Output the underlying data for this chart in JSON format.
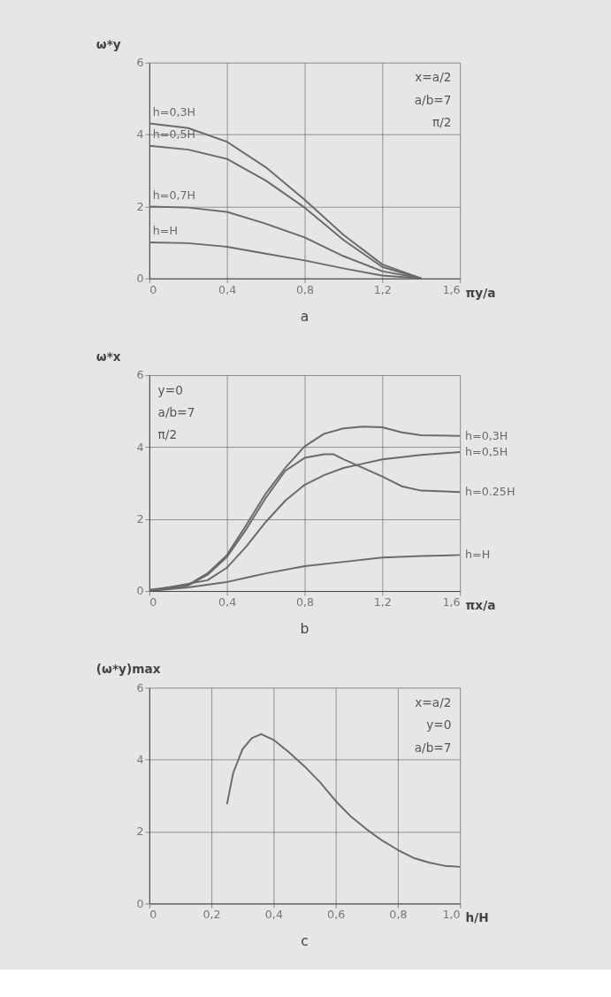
{
  "chart_data": [
    {
      "type": "line",
      "title": "a",
      "xlabel": "πy/a",
      "ylabel": "ω*y",
      "grid": true,
      "legend": false,
      "marker": "none",
      "line_style": "solid",
      "xlim": [
        0,
        1.6
      ],
      "ylim": [
        0,
        6
      ],
      "xticks": [
        0,
        {
          "value": 0.4,
          "label": "0,4"
        },
        {
          "value": 0.8,
          "label": "0,8"
        },
        {
          "value": 1.2,
          "label": "1,2"
        },
        {
          "value": 1.6,
          "label": "1,6"
        }
      ],
      "yticks": [
        0,
        2,
        4,
        6
      ],
      "x": [
        0,
        0.2,
        0.4,
        0.6,
        0.8,
        1.0,
        1.2,
        1.4
      ],
      "series": [
        {
          "name": "h=0,3H",
          "color": "#6a6a6a",
          "values": [
            4.31,
            4.18,
            3.8,
            3.09,
            2.19,
            1.21,
            0.39,
            0
          ]
        },
        {
          "name": "h=0,5H",
          "color": "#6a6a6a",
          "values": [
            3.69,
            3.58,
            3.32,
            2.72,
            1.97,
            1.07,
            0.32,
            0
          ]
        },
        {
          "name": "h=0,7H",
          "color": "#6a6a6a",
          "values": [
            2.0,
            1.97,
            1.85,
            1.52,
            1.14,
            0.62,
            0.2,
            0
          ]
        },
        {
          "name": "h=H",
          "color": "#6a6a6a",
          "values": [
            1.0,
            0.98,
            0.88,
            0.69,
            0.5,
            0.28,
            0.08,
            0
          ]
        }
      ],
      "annotations": [
        "x=a/2",
        "a/b=7",
        "π/2"
      ]
    },
    {
      "type": "line",
      "title": "b",
      "xlabel": "πx/a",
      "ylabel": "ω*x",
      "grid": true,
      "legend": false,
      "marker": "none",
      "line_style": "solid",
      "xlim": [
        0,
        1.6
      ],
      "ylim": [
        0,
        6
      ],
      "xticks": [
        0,
        {
          "value": 0.4,
          "label": "0,4"
        },
        {
          "value": 0.8,
          "label": "0,8"
        },
        {
          "value": 1.2,
          "label": "1,2"
        },
        {
          "value": 1.6,
          "label": "1,6"
        }
      ],
      "yticks": [
        0,
        2,
        4,
        6
      ],
      "series": [
        {
          "name": "h=0,3H",
          "color": "#6a6a6a",
          "x": [
            0,
            0.2,
            0.3,
            0.4,
            0.5,
            0.6,
            0.7,
            0.8,
            0.9,
            1.0,
            1.1,
            1.2,
            1.3,
            1.4,
            1.6
          ],
          "values": [
            0.03,
            0.17,
            0.49,
            1.0,
            1.84,
            2.71,
            3.42,
            4.02,
            4.37,
            4.52,
            4.57,
            4.55,
            4.41,
            4.33,
            4.31
          ]
        },
        {
          "name": "h=0,5H",
          "color": "#6a6a6a",
          "x": [
            0,
            0.3,
            0.4,
            0.5,
            0.6,
            0.7,
            0.8,
            0.9,
            1.0,
            1.1,
            1.2,
            1.4,
            1.6
          ],
          "values": [
            0,
            0.3,
            0.65,
            1.24,
            1.92,
            2.51,
            2.95,
            3.22,
            3.42,
            3.54,
            3.66,
            3.78,
            3.86
          ]
        },
        {
          "name": "h=0.25H",
          "color": "#6a6a6a",
          "x": [
            0,
            0.2,
            0.3,
            0.4,
            0.5,
            0.6,
            0.7,
            0.8,
            0.9,
            0.95,
            1.0,
            1.1,
            1.2,
            1.3,
            1.4,
            1.6
          ],
          "values": [
            0,
            0.15,
            0.45,
            0.95,
            1.72,
            2.59,
            3.34,
            3.7,
            3.8,
            3.8,
            3.66,
            3.42,
            3.18,
            2.91,
            2.79,
            2.75
          ]
        },
        {
          "name": "h=H",
          "color": "#6a6a6a",
          "x": [
            0,
            0.2,
            0.4,
            0.5,
            0.6,
            0.8,
            1.0,
            1.2,
            1.4,
            1.6
          ],
          "values": [
            0,
            0.1,
            0.25,
            0.37,
            0.49,
            0.69,
            0.81,
            0.93,
            0.97,
            1.0
          ]
        }
      ],
      "annotations": [
        "y=0",
        "a/b=7",
        "π/2"
      ]
    },
    {
      "type": "line",
      "title": "c",
      "xlabel": "h/H",
      "ylabel": "(ω*y)max",
      "grid": true,
      "legend": false,
      "marker": "none",
      "line_style": "solid",
      "xlim": [
        0,
        1.0
      ],
      "ylim": [
        0,
        6
      ],
      "xticks": [
        0,
        {
          "value": 0.2,
          "label": "0,2"
        },
        {
          "value": 0.4,
          "label": "0,4"
        },
        {
          "value": 0.6,
          "label": "0,6"
        },
        {
          "value": 0.8,
          "label": "0,8"
        },
        {
          "value": 1.0,
          "label": "1,0"
        }
      ],
      "yticks": [
        0,
        2,
        4,
        6
      ],
      "x": [
        0.25,
        0.27,
        0.3,
        0.33,
        0.36,
        0.4,
        0.45,
        0.5,
        0.55,
        0.6,
        0.65,
        0.7,
        0.75,
        0.8,
        0.85,
        0.9,
        0.95,
        1.0
      ],
      "series": [
        {
          "color": "#6a6a6a",
          "values": [
            2.76,
            3.63,
            4.29,
            4.6,
            4.71,
            4.55,
            4.2,
            3.81,
            3.37,
            2.85,
            2.41,
            2.06,
            1.75,
            1.49,
            1.27,
            1.14,
            1.05,
            1.02
          ]
        }
      ],
      "annotations": [
        "x=a/2",
        "y=0",
        "a/b=7"
      ]
    }
  ]
}
